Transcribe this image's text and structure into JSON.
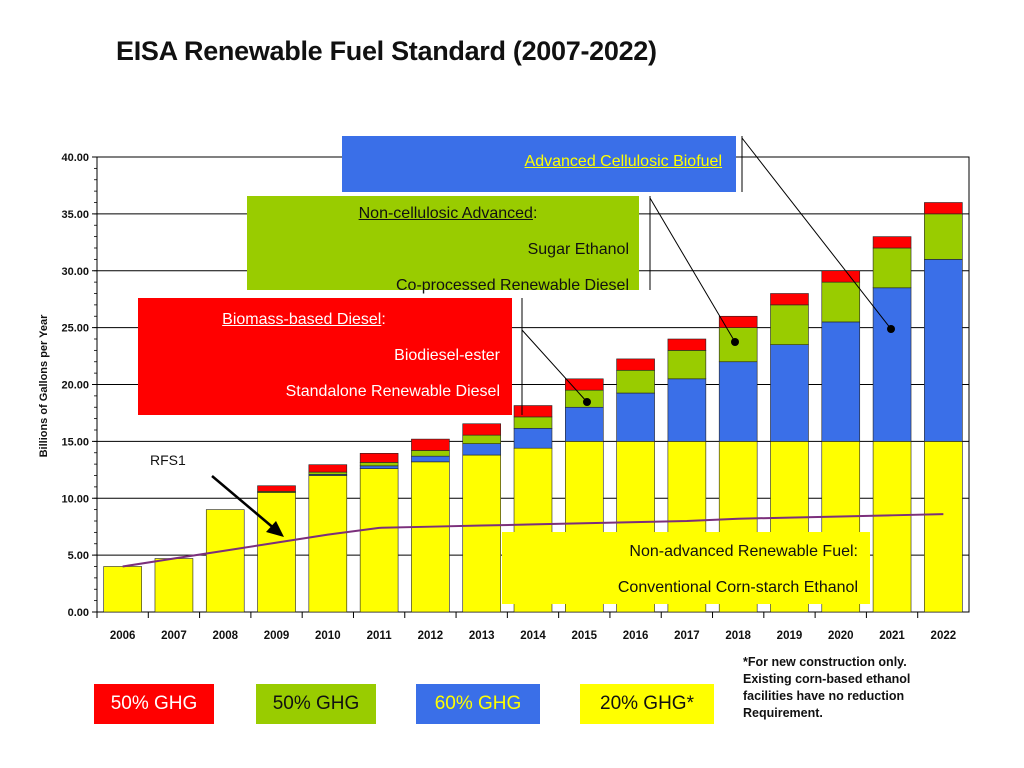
{
  "title": "EISA Renewable Fuel Standard (2007-2022)",
  "colors": {
    "biomass": "#ff0000",
    "advanced": "#99cc00",
    "cellulosic": "#3a6fe8",
    "conventional": "#ffff00",
    "rfs1": "#7b2f7b"
  },
  "callouts": {
    "cellulosic": {
      "title": "Advanced Cellulosic Biofuel"
    },
    "advanced": {
      "title": "Non-cellulosic Advanced",
      "colon": ":",
      "line1": "Sugar Ethanol",
      "line2": "Co-processed Renewable Diesel"
    },
    "biomass": {
      "title": "Biomass-based Diesel",
      "colon": ":",
      "line1": "Biodiesel-ester",
      "line2": "Standalone Renewable Diesel"
    },
    "conventional": {
      "line1": "Non-advanced Renewable Fuel:",
      "line2": "Conventional Corn-starch Ethanol"
    }
  },
  "rfs1_label": "RFS1",
  "legend": [
    {
      "label": "50% GHG",
      "icon": "red-swatch"
    },
    {
      "label": "50% GHG",
      "icon": "green-swatch"
    },
    {
      "label": "60% GHG",
      "icon": "blue-swatch"
    },
    {
      "label": "20% GHG*",
      "icon": "yellow-swatch"
    }
  ],
  "footnote": {
    "line1": "*For new construction only.",
    "line2": "Existing corn-based ethanol",
    "line3": "facilities have no reduction",
    "line4": "Requirement."
  },
  "chart_data": {
    "type": "bar",
    "stacked": true,
    "title": "EISA Renewable Fuel Standard (2007-2022)",
    "ylabel": "Billions of Gallons per Year",
    "xlabel": "",
    "ylim": [
      0,
      40
    ],
    "y_ticks": [
      "0.00",
      "5.00",
      "10.00",
      "15.00",
      "20.00",
      "25.00",
      "30.00",
      "35.00",
      "40.00"
    ],
    "grid": true,
    "categories": [
      "2006",
      "2007",
      "2008",
      "2009",
      "2010",
      "2011",
      "2012",
      "2013",
      "2014",
      "2015",
      "2016",
      "2017",
      "2018",
      "2019",
      "2020",
      "2021",
      "2022"
    ],
    "series": [
      {
        "key": "conventional",
        "values": [
          4.0,
          4.7,
          9.0,
          10.5,
          12.0,
          12.6,
          13.2,
          13.8,
          14.4,
          15.0,
          15.0,
          15.0,
          15.0,
          15.0,
          15.0,
          15.0,
          15.0
        ]
      },
      {
        "key": "cellulosic",
        "values": [
          0,
          0,
          0,
          0,
          0.1,
          0.25,
          0.5,
          1.0,
          1.75,
          3.0,
          4.25,
          5.5,
          7.0,
          8.5,
          10.5,
          13.5,
          16.0
        ]
      },
      {
        "key": "advanced",
        "values": [
          0,
          0,
          0,
          0.1,
          0.2,
          0.3,
          0.5,
          0.75,
          1.0,
          1.5,
          2.0,
          2.5,
          3.0,
          3.5,
          3.5,
          3.5,
          4.0
        ]
      },
      {
        "key": "biomass",
        "values": [
          0,
          0,
          0,
          0.5,
          0.65,
          0.8,
          1.0,
          1.0,
          1.0,
          1.0,
          1.0,
          1.0,
          1.0,
          1.0,
          1.0,
          1.0,
          1.0
        ]
      }
    ],
    "rfs1_line": {
      "name": "RFS1",
      "x": [
        "2006",
        "2007",
        "2008",
        "2009",
        "2010",
        "2011",
        "2012",
        "2013",
        "2014",
        "2015",
        "2016",
        "2017",
        "2018",
        "2019",
        "2020",
        "2021",
        "2022"
      ],
      "values": [
        4.0,
        4.7,
        5.4,
        6.1,
        6.8,
        7.4,
        7.5,
        7.6,
        7.7,
        7.8,
        7.9,
        8.0,
        8.2,
        8.3,
        8.4,
        8.5,
        8.6
      ]
    }
  }
}
